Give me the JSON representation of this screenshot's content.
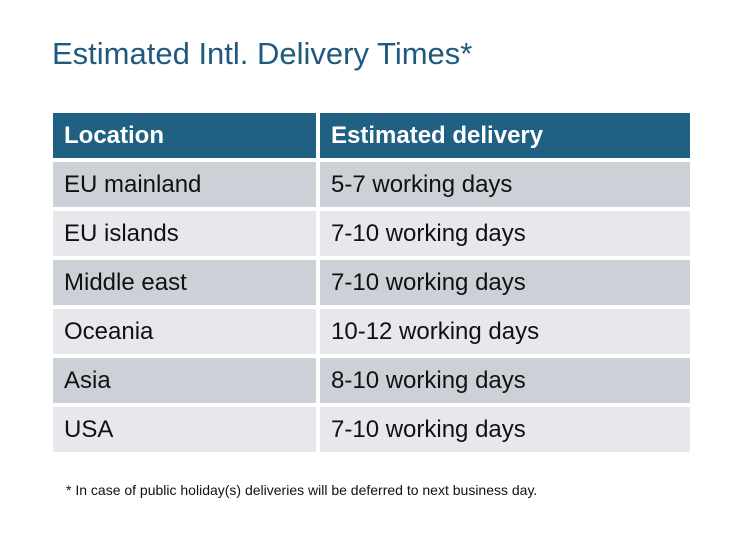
{
  "title": "Estimated Intl. Delivery Times*",
  "table": {
    "headers": [
      "Location",
      "Estimated delivery"
    ],
    "rows": [
      [
        "EU mainland",
        "5-7 working days"
      ],
      [
        "EU islands",
        "7-10 working days"
      ],
      [
        "Middle east",
        "7-10 working days"
      ],
      [
        "Oceania",
        "10-12 working days"
      ],
      [
        "Asia",
        "8-10 working days"
      ],
      [
        "USA",
        "7-10 working days"
      ]
    ]
  },
  "footnote": "* In case of public holiday(s) deliveries will be deferred to next business day.",
  "colors": {
    "header": "#1f6083",
    "title": "#1f5a7e",
    "row_dark": "#ccd1d8",
    "row_light": "#e6e8eb"
  }
}
